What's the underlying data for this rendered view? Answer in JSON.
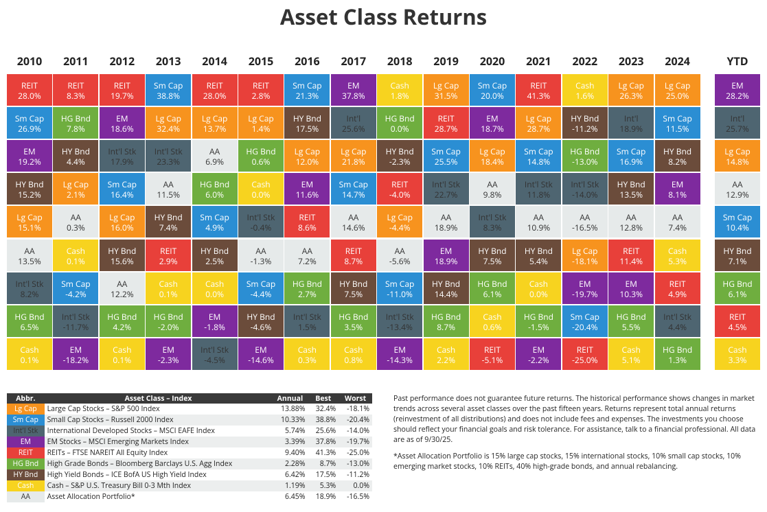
{
  "title": "Asset Class Returns",
  "columns": [
    {
      "year": "2010",
      "cells": [
        {
          "label": "REIT",
          "value": "28.0%",
          "color": "#e8403a"
        },
        {
          "label": "Sm Cap",
          "value": "26.9%",
          "color": "#2b8ed3"
        },
        {
          "label": "EM",
          "value": "19.2%",
          "color": "#7e2a9e"
        },
        {
          "label": "HY Bnd",
          "value": "15.2%",
          "color": "#6b4c3b"
        },
        {
          "label": "Lg Cap",
          "value": "15.1%",
          "color": "#f7931e"
        },
        {
          "label": "AA",
          "value": "13.5%",
          "color": "#e6eaea"
        },
        {
          "label": "Int'l Stk",
          "value": "8.2%",
          "color": "#4e6571"
        },
        {
          "label": "HG Bnd",
          "value": "6.5%",
          "color": "#6fae3f"
        },
        {
          "label": "Cash",
          "value": "0.1%",
          "color": "#f7d31f"
        }
      ]
    },
    {
      "year": "2011",
      "cells": [
        {
          "label": "REIT",
          "value": "8.3%",
          "color": "#e8403a"
        },
        {
          "label": "HG Bnd",
          "value": "7.8%",
          "color": "#6fae3f"
        },
        {
          "label": "HY Bnd",
          "value": "4.4%",
          "color": "#6b4c3b"
        },
        {
          "label": "Lg Cap",
          "value": "2.1%",
          "color": "#f7931e"
        },
        {
          "label": "AA",
          "value": "0.3%",
          "color": "#e6eaea"
        },
        {
          "label": "Cash",
          "value": "0.1%",
          "color": "#f7d31f"
        },
        {
          "label": "Sm Cap",
          "value": "-4.2%",
          "color": "#2b8ed3"
        },
        {
          "label": "Int'l Stk",
          "value": "-11.7%",
          "color": "#4e6571"
        },
        {
          "label": "EM",
          "value": "-18.2%",
          "color": "#7e2a9e"
        }
      ]
    },
    {
      "year": "2012",
      "cells": [
        {
          "label": "REIT",
          "value": "19.7%",
          "color": "#e8403a"
        },
        {
          "label": "EM",
          "value": "18.6%",
          "color": "#7e2a9e"
        },
        {
          "label": "Int'l Stk",
          "value": "17.9%",
          "color": "#4e6571"
        },
        {
          "label": "Sm Cap",
          "value": "16.4%",
          "color": "#2b8ed3"
        },
        {
          "label": "Lg Cap",
          "value": "16.0%",
          "color": "#f7931e"
        },
        {
          "label": "HY Bnd",
          "value": "15.6%",
          "color": "#6b4c3b"
        },
        {
          "label": "AA",
          "value": "12.2%",
          "color": "#e6eaea"
        },
        {
          "label": "HG Bnd",
          "value": "4.2%",
          "color": "#6fae3f"
        },
        {
          "label": "Cash",
          "value": "0.1%",
          "color": "#f7d31f"
        }
      ]
    },
    {
      "year": "2013",
      "cells": [
        {
          "label": "Sm Cap",
          "value": "38.8%",
          "color": "#2b8ed3"
        },
        {
          "label": "Lg Cap",
          "value": "32.4%",
          "color": "#f7931e"
        },
        {
          "label": "Int'l Stk",
          "value": "23.3%",
          "color": "#4e6571"
        },
        {
          "label": "AA",
          "value": "11.5%",
          "color": "#e6eaea"
        },
        {
          "label": "HY Bnd",
          "value": "7.4%",
          "color": "#6b4c3b"
        },
        {
          "label": "REIT",
          "value": "2.9%",
          "color": "#e8403a"
        },
        {
          "label": "Cash",
          "value": "0.1%",
          "color": "#f7d31f"
        },
        {
          "label": "HG Bnd",
          "value": "-2.0%",
          "color": "#6fae3f"
        },
        {
          "label": "EM",
          "value": "-2.3%",
          "color": "#7e2a9e"
        }
      ]
    },
    {
      "year": "2014",
      "cells": [
        {
          "label": "REIT",
          "value": "28.0%",
          "color": "#e8403a"
        },
        {
          "label": "Lg Cap",
          "value": "13.7%",
          "color": "#f7931e"
        },
        {
          "label": "AA",
          "value": "6.9%",
          "color": "#e6eaea"
        },
        {
          "label": "HG Bnd",
          "value": "6.0%",
          "color": "#6fae3f"
        },
        {
          "label": "Sm Cap",
          "value": "4.9%",
          "color": "#2b8ed3"
        },
        {
          "label": "HY Bnd",
          "value": "2.5%",
          "color": "#6b4c3b"
        },
        {
          "label": "Cash",
          "value": "0.0%",
          "color": "#f7d31f"
        },
        {
          "label": "EM",
          "value": "-1.8%",
          "color": "#7e2a9e"
        },
        {
          "label": "Int'l Stk",
          "value": "-4.5%",
          "color": "#4e6571"
        }
      ]
    },
    {
      "year": "2015",
      "cells": [
        {
          "label": "REIT",
          "value": "2.8%",
          "color": "#e8403a"
        },
        {
          "label": "Lg Cap",
          "value": "1.4%",
          "color": "#f7931e"
        },
        {
          "label": "HG Bnd",
          "value": "0.6%",
          "color": "#6fae3f"
        },
        {
          "label": "Cash",
          "value": "0.0%",
          "color": "#f7d31f"
        },
        {
          "label": "Int'l Stk",
          "value": "-0.4%",
          "color": "#4e6571"
        },
        {
          "label": "AA",
          "value": "-1.3%",
          "color": "#e6eaea"
        },
        {
          "label": "Sm Cap",
          "value": "-4.4%",
          "color": "#2b8ed3"
        },
        {
          "label": "HY Bnd",
          "value": "-4.6%",
          "color": "#6b4c3b"
        },
        {
          "label": "EM",
          "value": "-14.6%",
          "color": "#7e2a9e"
        }
      ]
    },
    {
      "year": "2016",
      "cells": [
        {
          "label": "Sm Cap",
          "value": "21.3%",
          "color": "#2b8ed3"
        },
        {
          "label": "HY Bnd",
          "value": "17.5%",
          "color": "#6b4c3b"
        },
        {
          "label": "Lg Cap",
          "value": "12.0%",
          "color": "#f7931e"
        },
        {
          "label": "EM",
          "value": "11.6%",
          "color": "#7e2a9e"
        },
        {
          "label": "REIT",
          "value": "8.6%",
          "color": "#e8403a"
        },
        {
          "label": "AA",
          "value": "7.2%",
          "color": "#e6eaea"
        },
        {
          "label": "HG Bnd",
          "value": "2.7%",
          "color": "#6fae3f"
        },
        {
          "label": "Int'l Stk",
          "value": "1.5%",
          "color": "#4e6571"
        },
        {
          "label": "Cash",
          "value": "0.3%",
          "color": "#f7d31f"
        }
      ]
    },
    {
      "year": "2017",
      "cells": [
        {
          "label": "EM",
          "value": "37.8%",
          "color": "#7e2a9e"
        },
        {
          "label": "Int'l",
          "value": "25.6%",
          "color": "#4e6571"
        },
        {
          "label": "Lg Cap",
          "value": "21.8%",
          "color": "#f7931e"
        },
        {
          "label": "Sm Cap",
          "value": "14.7%",
          "color": "#2b8ed3"
        },
        {
          "label": "AA",
          "value": "14.6%",
          "color": "#e6eaea"
        },
        {
          "label": "REIT",
          "value": "8.7%",
          "color": "#e8403a"
        },
        {
          "label": "HY Bnd",
          "value": "7.5%",
          "color": "#6b4c3b"
        },
        {
          "label": "HG Bnd",
          "value": "3.5%",
          "color": "#6fae3f"
        },
        {
          "label": "Cash",
          "value": "0.8%",
          "color": "#f7d31f"
        }
      ]
    },
    {
      "year": "2018",
      "cells": [
        {
          "label": "Cash",
          "value": "1.8%",
          "color": "#f7d31f"
        },
        {
          "label": "HG Bnd",
          "value": "0.0%",
          "color": "#6fae3f"
        },
        {
          "label": "HY Bnd",
          "value": "-2.3%",
          "color": "#6b4c3b"
        },
        {
          "label": "REIT",
          "value": "-4.0%",
          "color": "#e8403a"
        },
        {
          "label": "Lg Cap",
          "value": "-4.4%",
          "color": "#f7931e"
        },
        {
          "label": "AA",
          "value": "-5.6%",
          "color": "#e6eaea"
        },
        {
          "label": "Sm Cap",
          "value": "-11.0%",
          "color": "#2b8ed3"
        },
        {
          "label": "Int'l Stk",
          "value": "-13.4%",
          "color": "#4e6571"
        },
        {
          "label": "EM",
          "value": "-14.3%",
          "color": "#7e2a9e"
        }
      ]
    },
    {
      "year": "2019",
      "cells": [
        {
          "label": "Lg Cap",
          "value": "31.5%",
          "color": "#f7931e"
        },
        {
          "label": "REIT",
          "value": "28.7%",
          "color": "#e8403a"
        },
        {
          "label": "Sm Cap",
          "value": "25.5%",
          "color": "#2b8ed3"
        },
        {
          "label": "Int'l Stk",
          "value": "22.7%",
          "color": "#4e6571"
        },
        {
          "label": "AA",
          "value": "18.9%",
          "color": "#e6eaea"
        },
        {
          "label": "EM",
          "value": "18.9%",
          "color": "#7e2a9e"
        },
        {
          "label": "HY Bnd",
          "value": "14.4%",
          "color": "#6b4c3b"
        },
        {
          "label": "HG Bnd",
          "value": "8.7%",
          "color": "#6fae3f"
        },
        {
          "label": "Cash",
          "value": "2.2%",
          "color": "#f7d31f"
        }
      ]
    },
    {
      "year": "2020",
      "cells": [
        {
          "label": "Sm Cap",
          "value": "20.0%",
          "color": "#2b8ed3"
        },
        {
          "label": "EM",
          "value": "18.7%",
          "color": "#7e2a9e"
        },
        {
          "label": "Lg Cap",
          "value": "18.4%",
          "color": "#f7931e"
        },
        {
          "label": "AA",
          "value": "9.8%",
          "color": "#e6eaea"
        },
        {
          "label": "Int'l Stk",
          "value": "8.3%",
          "color": "#4e6571"
        },
        {
          "label": "HY Bnd",
          "value": "7.5%",
          "color": "#6b4c3b"
        },
        {
          "label": "HG Bnd",
          "value": "6.1%",
          "color": "#6fae3f"
        },
        {
          "label": "Cash",
          "value": "0.6%",
          "color": "#f7d31f"
        },
        {
          "label": "REIT",
          "value": "-5.1%",
          "color": "#e8403a"
        }
      ]
    },
    {
      "year": "2021",
      "cells": [
        {
          "label": "REIT",
          "value": "41.3%",
          "color": "#e8403a"
        },
        {
          "label": "Lg Cap",
          "value": "28.7%",
          "color": "#f7931e"
        },
        {
          "label": "Sm Cap",
          "value": "14.8%",
          "color": "#2b8ed3"
        },
        {
          "label": "Int'l Stk",
          "value": "11.8%",
          "color": "#4e6571"
        },
        {
          "label": "AA",
          "value": "10.9%",
          "color": "#e6eaea"
        },
        {
          "label": "HY Bnd",
          "value": "5.4%",
          "color": "#6b4c3b"
        },
        {
          "label": "Cash",
          "value": "0.0%",
          "color": "#f7d31f"
        },
        {
          "label": "HG Bnd",
          "value": "-1.5%",
          "color": "#6fae3f"
        },
        {
          "label": "EM",
          "value": "-2.2%",
          "color": "#7e2a9e"
        }
      ]
    },
    {
      "year": "2022",
      "cells": [
        {
          "label": "Cash",
          "value": "1.6%",
          "color": "#f7d31f"
        },
        {
          "label": "HY Bnd",
          "value": "-11.2%",
          "color": "#6b4c3b"
        },
        {
          "label": "HG Bnd",
          "value": "-13.0%",
          "color": "#6fae3f"
        },
        {
          "label": "Int'l Stk",
          "value": "-14.0%",
          "color": "#4e6571"
        },
        {
          "label": "AA",
          "value": "-16.5%",
          "color": "#e6eaea"
        },
        {
          "label": "Lg Cap",
          "value": "-18.1%",
          "color": "#f7931e"
        },
        {
          "label": "EM",
          "value": "-19.7%",
          "color": "#7e2a9e"
        },
        {
          "label": "Sm Cap",
          "value": "-20.4%",
          "color": "#2b8ed3"
        },
        {
          "label": "REIT",
          "value": "-25.0%",
          "color": "#e8403a"
        }
      ]
    },
    {
      "year": "2023",
      "cells": [
        {
          "label": "Lg Cap",
          "value": "26.3%",
          "color": "#f7931e"
        },
        {
          "label": "Int'l",
          "value": "18.9%",
          "color": "#4e6571"
        },
        {
          "label": "Sm Cap",
          "value": "16.9%",
          "color": "#2b8ed3"
        },
        {
          "label": "HY Bnd",
          "value": "13.5%",
          "color": "#6b4c3b"
        },
        {
          "label": "AA",
          "value": "12.8%",
          "color": "#e6eaea"
        },
        {
          "label": "REIT",
          "value": "11.4%",
          "color": "#e8403a"
        },
        {
          "label": "EM",
          "value": "10.3%",
          "color": "#7e2a9e"
        },
        {
          "label": "HG Bnd",
          "value": "5.5%",
          "color": "#6fae3f"
        },
        {
          "label": "Cash",
          "value": "5.1%",
          "color": "#f7d31f"
        }
      ]
    },
    {
      "year": "2024",
      "cells": [
        {
          "label": "Lg Cap",
          "value": "25.0%",
          "color": "#f7931e"
        },
        {
          "label": "Sm Cap",
          "value": "11.5%",
          "color": "#2b8ed3"
        },
        {
          "label": "HY Bnd",
          "value": "8.2%",
          "color": "#6b4c3b"
        },
        {
          "label": "EM",
          "value": "8.1%",
          "color": "#7e2a9e"
        },
        {
          "label": "AA",
          "value": "7.4%",
          "color": "#e6eaea"
        },
        {
          "label": "Cash",
          "value": "5.3%",
          "color": "#f7d31f"
        },
        {
          "label": "REIT",
          "value": "4.9%",
          "color": "#e8403a"
        },
        {
          "label": "Int'l Stk",
          "value": "4.4%",
          "color": "#4e6571"
        },
        {
          "label": "HG Bnd",
          "value": "1.3%",
          "color": "#6fae3f"
        }
      ]
    },
    {
      "year": "YTD",
      "cells": [
        {
          "label": "EM",
          "value": "28.2%",
          "color": "#7e2a9e"
        },
        {
          "label": "Int'l",
          "value": "25.7%",
          "color": "#4e6571"
        },
        {
          "label": "Lg Cap",
          "value": "14.8%",
          "color": "#f7931e"
        },
        {
          "label": "AA",
          "value": "12.9%",
          "color": "#e6eaea"
        },
        {
          "label": "Sm Cap",
          "value": "10.4%",
          "color": "#2b8ed3"
        },
        {
          "label": "HY Bnd",
          "value": "7.1%",
          "color": "#6b4c3b"
        },
        {
          "label": "HG Bnd",
          "value": "6.1%",
          "color": "#6fae3f"
        },
        {
          "label": "REIT",
          "value": "4.5%",
          "color": "#e8403a"
        },
        {
          "label": "Cash",
          "value": "3.3%",
          "color": "#f7d31f"
        }
      ]
    }
  ],
  "legend": {
    "headers": [
      "Abbr.",
      "Asset Class – Index",
      "Annual",
      "Best",
      "Worst"
    ],
    "rows": [
      {
        "abbr": "Lg Cap",
        "color": "#f7931e",
        "name": "Large Cap Stocks – S&P 500 Index",
        "annual": "13.88%",
        "best": "32.4%",
        "worst": "-18.1%"
      },
      {
        "abbr": "Sm Cap",
        "color": "#2b8ed3",
        "name": "Small Cap Stocks – Russell 2000 Index",
        "annual": "10.33%",
        "best": "38.8%",
        "worst": "-20.4%"
      },
      {
        "abbr": "Int'l Stk",
        "color": "#4e6571",
        "name": "International Developed Stocks – MSCI EAFE Index",
        "annual": "5.74%",
        "best": "25.6%",
        "worst": "-14.0%"
      },
      {
        "abbr": "EM",
        "color": "#7e2a9e",
        "name": "EM Stocks – MSCI Emerging Markets Index",
        "annual": "3.39%",
        "best": "37.8%",
        "worst": "-19.7%"
      },
      {
        "abbr": "REIT",
        "color": "#e8403a",
        "name": "REITs – FTSE NAREIT All Equity Index",
        "annual": "9.40%",
        "best": "41.3%",
        "worst": "-25.0%"
      },
      {
        "abbr": "HG Bnd",
        "color": "#6fae3f",
        "name": "High Grade Bonds – Bloomberg Barclays U.S. Agg Index",
        "annual": "2.28%",
        "best": "8.7%",
        "worst": "-13.0%"
      },
      {
        "abbr": "HY Bnd",
        "color": "#6b4c3b",
        "name": "High Yield Bonds – ICE BofA US High Yield Index",
        "annual": "6.42%",
        "best": "17.5%",
        "worst": "-11.2%"
      },
      {
        "abbr": "Cash",
        "color": "#f7d31f",
        "name": "Cash – S&P U.S. Treasury Bill 0-3 Mth Index",
        "annual": "1.19%",
        "best": "5.3%",
        "worst": "0.0%"
      },
      {
        "abbr": "AA",
        "color": "#e6eaea",
        "name": "Asset Allocation Portfolio*",
        "annual": "6.45%",
        "best": "18.9%",
        "worst": "-16.5%"
      }
    ]
  },
  "notes": [
    "Past performance does not guarantee future returns. The historical performance shows changes in market trends across several asset classes over the past fifteen years. Returns represent total annual returns (reinvestment of all distributions) and does not include fees and expenses. The investments you choose should reflect your financial goals and risk tolerance. For assistance, talk to a financial professional. All data are as of 9/30/25.",
    "*Asset Allocation Portfolio is 15% large cap stocks, 15% international stocks, 10% small cap stocks, 10% emerging market stocks, 10% REITs, 40% high-grade bonds, and annual rebalancing."
  ]
}
